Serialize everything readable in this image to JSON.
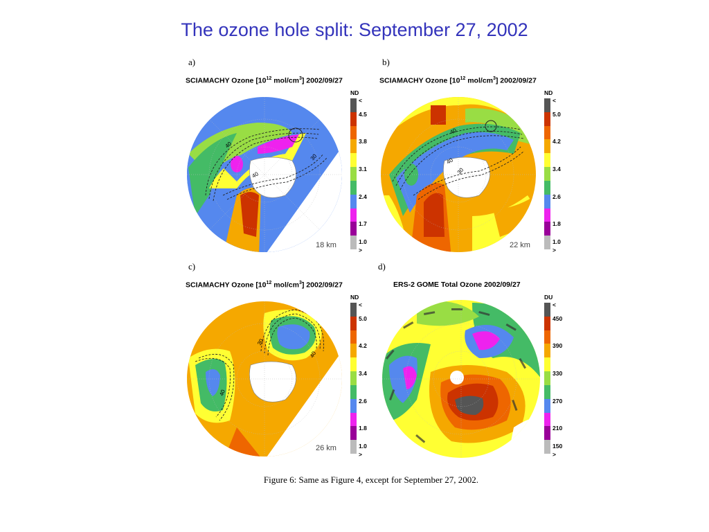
{
  "slide": {
    "title": "The ozone hole split: September 27, 2002",
    "caption": "Figure 6: Same as Figure 4, except for September 27, 2002."
  },
  "panels": [
    {
      "letter": "a)",
      "title_pre": "SCIAMACHY Ozone [10",
      "title_sup": "12",
      "title_mid": " mol/cm",
      "title_sup2": "3",
      "title_post": "] 2002/09/27",
      "unit": "ND",
      "ticks": [
        "<",
        "4.5",
        "3.8",
        "3.1",
        "2.4",
        "1.7",
        "1.0",
        ">"
      ],
      "altitude": "18 km",
      "contour_labels": [
        "40",
        "40",
        "30"
      ]
    },
    {
      "letter": "b)",
      "title_pre": "SCIAMACHY Ozone [10",
      "title_sup": "12",
      "title_mid": " mol/cm",
      "title_sup2": "3",
      "title_post": "] 2002/09/27",
      "unit": "ND",
      "ticks": [
        "<",
        "5.0",
        "4.2",
        "3.4",
        "2.6",
        "1.8",
        "1.0",
        ">"
      ],
      "altitude": "22 km",
      "contour_labels": [
        "40",
        "40",
        "30"
      ]
    },
    {
      "letter": "c)",
      "title_pre": "SCIAMACHY Ozone [10",
      "title_sup": "12",
      "title_mid": " mol/cm",
      "title_sup2": "3",
      "title_post": "] 2002/09/27",
      "unit": "ND",
      "ticks": [
        "<",
        "5.0",
        "4.2",
        "3.4",
        "2.6",
        "1.8",
        "1.0",
        ">"
      ],
      "altitude": "26 km",
      "contour_labels": [
        "30",
        "40",
        "40"
      ]
    },
    {
      "letter": "d)",
      "title_full": "ERS-2 GOME Total Ozone 2002/09/27",
      "unit": "DU",
      "ticks": [
        "<",
        "450",
        "390",
        "330",
        "270",
        "210",
        "150",
        ">"
      ],
      "altitude": ""
    }
  ],
  "colors": {
    "title_blue": "#3333bb",
    "scale": [
      "#555555",
      "#cc3300",
      "#ee6600",
      "#f5a800",
      "#ffff33",
      "#99dd44",
      "#44bb66",
      "#5588ee",
      "#ee22ee",
      "#990099",
      "#bbbbbb"
    ],
    "land": "#ffffff",
    "contour": "#222222"
  }
}
